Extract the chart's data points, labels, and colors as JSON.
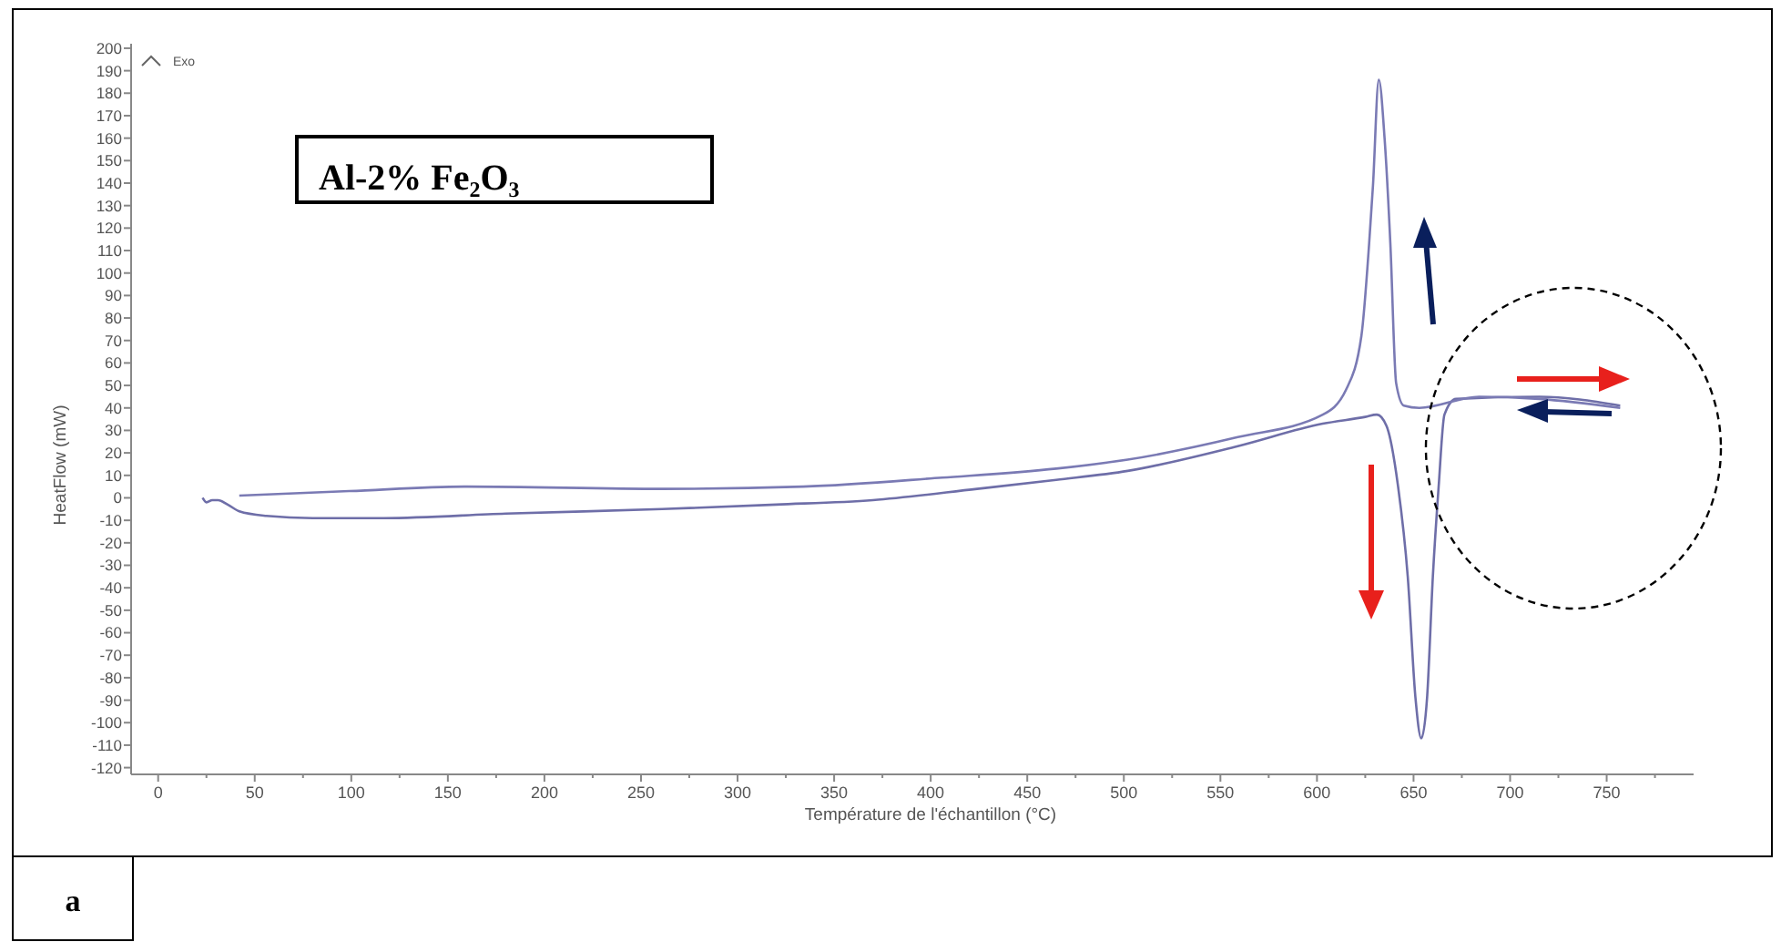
{
  "chart_data": {
    "type": "line",
    "title": "Al-2% Fe₂O₃",
    "xlabel": "Température de l'échantillon (°C)",
    "ylabel": "HeatFlow (mW)",
    "annotations": [
      "Exo",
      "a"
    ],
    "xlim": [
      -14,
      795
    ],
    "ylim": [
      -123,
      202
    ],
    "xticks": [
      0,
      {
        "value": 25,
        "label": null
      },
      50,
      {
        "value": 75,
        "label": null
      },
      100,
      {
        "value": 125,
        "label": null
      },
      150,
      {
        "value": 175,
        "label": null
      },
      200,
      {
        "value": 225,
        "label": null
      },
      250,
      {
        "value": 275,
        "label": null
      },
      300,
      {
        "value": 325,
        "label": null
      },
      350,
      {
        "value": 375,
        "label": null
      },
      400,
      {
        "value": 425,
        "label": null
      },
      450,
      {
        "value": 475,
        "label": null
      },
      500,
      {
        "value": 525,
        "label": null
      },
      550,
      {
        "value": 575,
        "label": null
      },
      600,
      {
        "value": 625,
        "label": null
      },
      650,
      {
        "value": 675,
        "label": null
      },
      700,
      {
        "value": 725,
        "label": null
      },
      750,
      {
        "value": 775,
        "label": null
      }
    ],
    "yticks": [
      -120,
      -110,
      -100,
      -90,
      -80,
      -70,
      -60,
      -50,
      -40,
      -30,
      -20,
      -10,
      0,
      10,
      20,
      30,
      40,
      50,
      60,
      70,
      80,
      90,
      100,
      110,
      120,
      130,
      140,
      150,
      160,
      170,
      180,
      190,
      200
    ],
    "grid": false,
    "marker": "none",
    "line_style": "solid",
    "series": [
      {
        "color": "#6e6ea8",
        "x": [
          23,
          25,
          28,
          31,
          36,
          42,
          56,
          80,
          117,
          180,
          261,
          320,
          370,
          424,
          465,
          502,
          559,
          603,
          625,
          631,
          636,
          642,
          647,
          651,
          654,
          657,
          660,
          663,
          666,
          672,
          715,
          757
        ],
        "values": [
          0,
          -2,
          -1,
          -1,
          -3,
          -6,
          -8,
          -9,
          -9,
          -7,
          -5,
          -3,
          -1,
          4,
          8,
          12,
          23,
          33,
          36,
          37,
          32,
          5,
          -35,
          -89,
          -107,
          -89,
          -35,
          5,
          37,
          44,
          45,
          41
        ]
      },
      {
        "color": "#7a7ab4",
        "x": [
          42,
          99,
          160,
          261,
          334,
          406,
          465,
          502,
          559,
          603,
          615,
          623,
          627,
          629,
          632,
          635,
          638,
          641,
          645,
          653,
          684,
          715,
          757
        ],
        "values": [
          1,
          3,
          5,
          4,
          5,
          9,
          13,
          17,
          27,
          37,
          48,
          72,
          113,
          139,
          186,
          160,
          113,
          51,
          41,
          40,
          45,
          44,
          40
        ]
      }
    ]
  }
}
